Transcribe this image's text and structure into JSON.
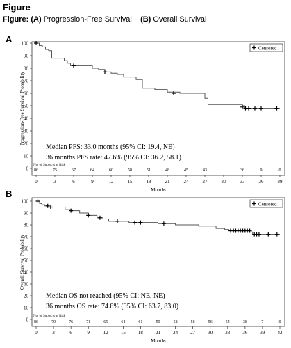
{
  "figure": {
    "title": "Figure",
    "subtitle_prefix": "Figure:",
    "part_a_tag": "(A)",
    "part_a_label": "Progression-Free Survival",
    "part_b_tag": "(B)",
    "part_b_label": "Overall Survival"
  },
  "chart_data": [
    {
      "type": "line",
      "panel": "A",
      "ylabel": "Progression-Free Survival Probability",
      "xlabel": "Months",
      "xlim": [
        0,
        39
      ],
      "ylim": [
        0,
        100
      ],
      "xticks": [
        0,
        3,
        6,
        9,
        12,
        15,
        18,
        21,
        24,
        27,
        30,
        33,
        36,
        39
      ],
      "yticks": [
        0,
        10,
        20,
        30,
        40,
        50,
        60,
        70,
        80,
        90,
        100
      ],
      "legend": "Censored",
      "legend_position": "top-right",
      "step": [
        [
          0,
          100
        ],
        [
          0.5,
          98
        ],
        [
          1,
          97
        ],
        [
          1.5,
          95
        ],
        [
          2,
          94
        ],
        [
          2.5,
          88
        ],
        [
          4.5,
          86
        ],
        [
          5,
          84
        ],
        [
          5.5,
          82
        ],
        [
          9,
          80
        ],
        [
          10,
          79
        ],
        [
          11,
          77
        ],
        [
          12,
          76
        ],
        [
          13,
          75
        ],
        [
          14,
          73
        ],
        [
          16,
          71
        ],
        [
          17,
          64
        ],
        [
          19,
          63
        ],
        [
          21,
          61
        ],
        [
          23,
          60
        ],
        [
          27,
          56
        ],
        [
          27.5,
          51
        ],
        [
          33,
          50
        ],
        [
          33.4,
          48
        ],
        [
          39,
          48
        ]
      ],
      "censored": [
        [
          0,
          100
        ],
        [
          6,
          82
        ],
        [
          11,
          77
        ],
        [
          22,
          60
        ],
        [
          33,
          49
        ],
        [
          33.5,
          48
        ],
        [
          34,
          48
        ],
        [
          35,
          48
        ],
        [
          36,
          48
        ],
        [
          38.5,
          48
        ]
      ],
      "annotations": [
        "Median PFS: 33.0 months (95% CI: 19.4, NE)",
        "36 months PFS rate: 47.6% (95% CI: 36.2, 58.1)"
      ],
      "risk_title": "No. of Subjects at Risk",
      "risk": {
        "x": [
          0,
          3,
          6,
          9,
          12,
          15,
          18,
          21,
          24,
          27,
          30,
          33,
          36,
          39
        ],
        "values": [
          86,
          75,
          67,
          64,
          60,
          58,
          51,
          48,
          45,
          43,
          "",
          36,
          9,
          0
        ]
      }
    },
    {
      "type": "line",
      "panel": "B",
      "ylabel": "Overall Survival Probability",
      "xlabel": "Months",
      "xlim": [
        0,
        42
      ],
      "ylim": [
        0,
        100
      ],
      "xticks": [
        0,
        3,
        6,
        9,
        12,
        15,
        18,
        21,
        24,
        27,
        30,
        33,
        36,
        39,
        42
      ],
      "yticks": [
        0,
        10,
        20,
        30,
        40,
        50,
        60,
        70,
        80,
        90,
        100
      ],
      "legend": "Censored",
      "legend_position": "top-right",
      "step": [
        [
          0,
          100
        ],
        [
          0.6,
          98
        ],
        [
          1,
          97
        ],
        [
          1.5,
          96
        ],
        [
          2,
          95
        ],
        [
          5,
          93
        ],
        [
          6,
          92
        ],
        [
          7.5,
          90
        ],
        [
          9,
          88
        ],
        [
          10.5,
          86
        ],
        [
          11.5,
          85
        ],
        [
          12.5,
          83
        ],
        [
          16,
          82
        ],
        [
          21,
          81
        ],
        [
          24,
          80
        ],
        [
          28,
          79
        ],
        [
          31,
          77
        ],
        [
          32.5,
          76
        ],
        [
          33.2,
          75
        ],
        [
          37,
          74
        ],
        [
          37.3,
          72
        ],
        [
          42,
          72
        ]
      ],
      "censored": [
        [
          0.3,
          100
        ],
        [
          2,
          96
        ],
        [
          2.5,
          95
        ],
        [
          6,
          92
        ],
        [
          9,
          88
        ],
        [
          11,
          86
        ],
        [
          14,
          83
        ],
        [
          17,
          82
        ],
        [
          18,
          82
        ],
        [
          22,
          81
        ],
        [
          33.5,
          75
        ],
        [
          34,
          75
        ],
        [
          34.4,
          75
        ],
        [
          34.8,
          75
        ],
        [
          35.2,
          75
        ],
        [
          35.6,
          75
        ],
        [
          36,
          75
        ],
        [
          36.4,
          75
        ],
        [
          36.8,
          75
        ],
        [
          37.6,
          72
        ],
        [
          38,
          72
        ],
        [
          38.4,
          72
        ],
        [
          40,
          72
        ],
        [
          41.5,
          72
        ]
      ],
      "annotations": [
        "Median OS not reached (95% CI: NE, NE)",
        "36 months OS rate: 74.8% (95% CI: 63.7, 83.0)"
      ],
      "risk_title": "No. of Subjects at Risk",
      "risk": {
        "x": [
          0,
          3,
          6,
          9,
          12,
          15,
          18,
          21,
          24,
          27,
          30,
          33,
          36,
          39,
          42
        ],
        "values": [
          86,
          79,
          76,
          71,
          65,
          64,
          61,
          59,
          58,
          56,
          56,
          54,
          38,
          7,
          0
        ]
      }
    }
  ]
}
